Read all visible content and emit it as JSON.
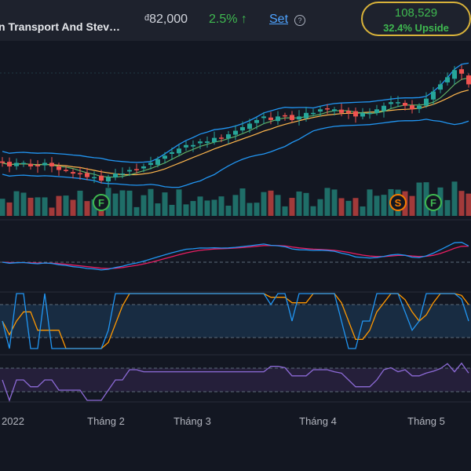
{
  "header": {
    "company_name": "n Transport And Stev…",
    "price_currency": "đ",
    "price": "82,000",
    "change": "2.5% ↑",
    "set_label": "Set",
    "help_icon": "?",
    "target_price": "108,529",
    "target_upside": "32.4% Upside"
  },
  "colors": {
    "background": "#131722",
    "up": "#26a69a",
    "down": "#ef5350",
    "bollinger": "#2196f3",
    "ma_fast": "#66bb6a",
    "ma_slow": "#ffb74d",
    "macd": "#2196f3",
    "signal": "#e91e63",
    "stoch_k": "#2196f3",
    "stoch_d": "#ff9800",
    "rsi": "#8c6ad6",
    "accent": "#3fb950",
    "highlight": "#d9b33a"
  },
  "chart_data": {
    "type": "candlestick",
    "x_axis_labels": [
      "2022",
      "Tháng 2",
      "Tháng 3",
      "Tháng 4",
      "Tháng 5"
    ],
    "event_markers": [
      "F",
      "S",
      "F"
    ],
    "panels": [
      "price",
      "volume",
      "macd",
      "stochastic",
      "rsi"
    ],
    "grid": false,
    "legend": "none",
    "price_series_approx": [
      58,
      57,
      58,
      58,
      57,
      57,
      58,
      57,
      56,
      56,
      55,
      55,
      54,
      54,
      53,
      54,
      55,
      55,
      56,
      56,
      57,
      58,
      59,
      60,
      61,
      62,
      63,
      63,
      64,
      64,
      65,
      65,
      66,
      67,
      68,
      69,
      70,
      71,
      70,
      71,
      71,
      70,
      71,
      72,
      72,
      73,
      73,
      73,
      72,
      72,
      71,
      72,
      72,
      73,
      74,
      75,
      75,
      74,
      73,
      74,
      76,
      78,
      80,
      82,
      84,
      83,
      80
    ]
  }
}
